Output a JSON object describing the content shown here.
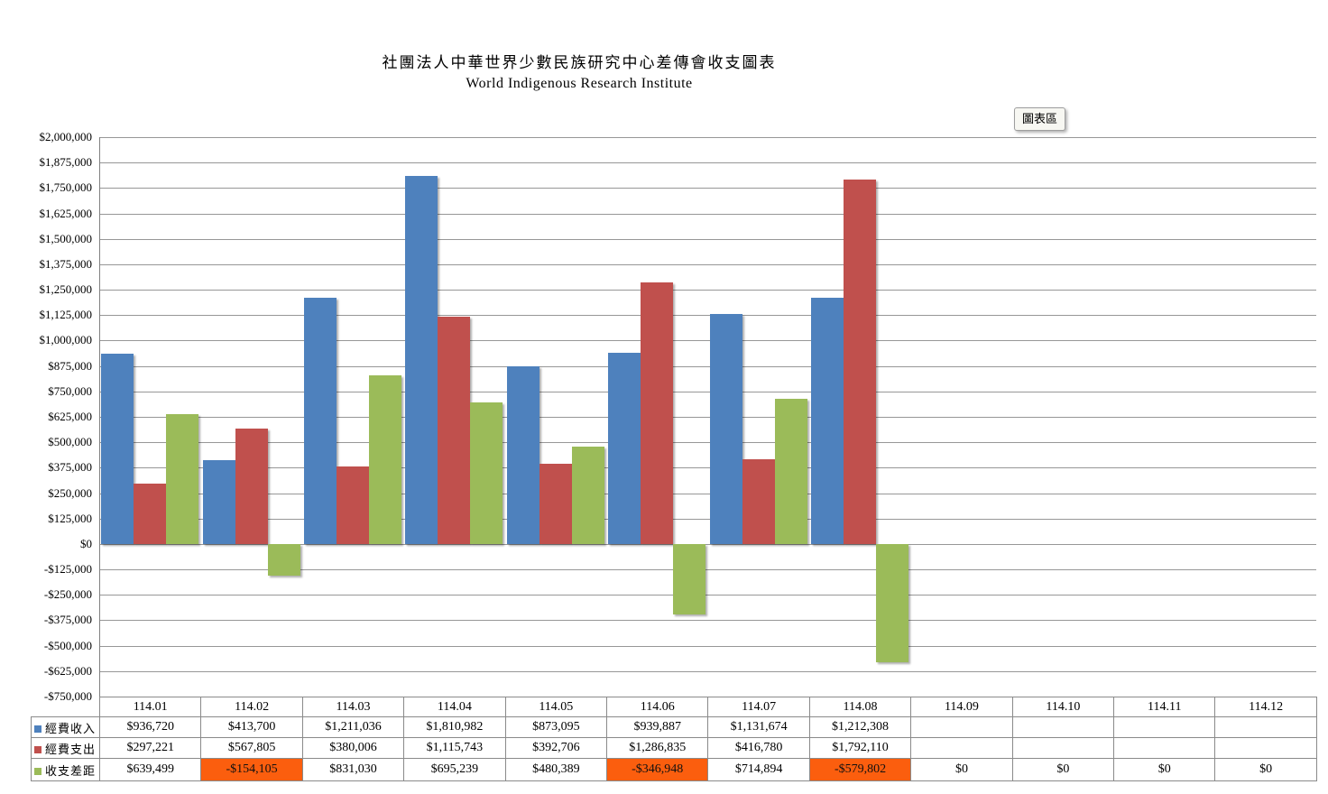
{
  "title": {
    "line1": "社團法人中華世界少數民族研究中心差傳會收支圖表",
    "line2": "World Indigenous Research Institute"
  },
  "tooltip": {
    "label": "圖表區"
  },
  "colors": {
    "income": "#4E81BD",
    "expense": "#C0504D",
    "balance": "#9BBB59",
    "highlight": "#FB5E0E",
    "gridline": "#979797",
    "table_border": "#8A8A8A"
  },
  "chart_data": {
    "type": "bar",
    "title": "社團法人中華世界少數民族研究中心差傳會收支圖表",
    "subtitle": "World Indigenous Research Institute",
    "categories": [
      "114.01",
      "114.02",
      "114.03",
      "114.04",
      "114.05",
      "114.06",
      "114.07",
      "114.08",
      "114.09",
      "114.10",
      "114.11",
      "114.12"
    ],
    "series": [
      {
        "key": "income",
        "name": "經費收入",
        "color": "#4E81BD",
        "values": [
          936720,
          413700,
          1211036,
          1810982,
          873095,
          939887,
          1131674,
          1212308,
          null,
          null,
          null,
          null
        ]
      },
      {
        "key": "expense",
        "name": "經費支出",
        "color": "#C0504D",
        "values": [
          297221,
          567805,
          380006,
          1115743,
          392706,
          1286835,
          416780,
          1792110,
          null,
          null,
          null,
          null
        ]
      },
      {
        "key": "balance",
        "name": "收支差距",
        "color": "#9BBB59",
        "values": [
          639499,
          -154105,
          831030,
          695239,
          480389,
          -346948,
          714894,
          -579802,
          0,
          0,
          0,
          0
        ]
      }
    ],
    "ylim": [
      -750000,
      2000000
    ],
    "y_step": 125000,
    "y_ticks": [
      "$2,000,000",
      "$1,875,000",
      "$1,750,000",
      "$1,625,000",
      "$1,500,000",
      "$1,375,000",
      "$1,250,000",
      "$1,125,000",
      "$1,000,000",
      "$875,000",
      "$750,000",
      "$625,000",
      "$500,000",
      "$375,000",
      "$250,000",
      "$125,000",
      "$0",
      "-$125,000",
      "-$250,000",
      "-$375,000",
      "-$500,000",
      "-$625,000",
      "-$750,000"
    ],
    "grid": true,
    "legend_position": "data-table-left"
  },
  "table": {
    "header": [
      "114.01",
      "114.02",
      "114.03",
      "114.04",
      "114.05",
      "114.06",
      "114.07",
      "114.08",
      "114.09",
      "114.10",
      "114.11",
      "114.12"
    ],
    "rows": [
      {
        "key": "income",
        "label": "經費收入",
        "swatch": "#4E81BD",
        "cells": [
          "$936,720",
          "$413,700",
          "$1,211,036",
          "$1,810,982",
          "$873,095",
          "$939,887",
          "$1,131,674",
          "$1,212,308",
          "",
          "",
          "",
          ""
        ],
        "highlight_cols": []
      },
      {
        "key": "expense",
        "label": "經費支出",
        "swatch": "#C0504D",
        "cells": [
          "$297,221",
          "$567,805",
          "$380,006",
          "$1,115,743",
          "$392,706",
          "$1,286,835",
          "$416,780",
          "$1,792,110",
          "",
          "",
          "",
          ""
        ],
        "highlight_cols": []
      },
      {
        "key": "balance",
        "label": "收支差距",
        "swatch": "#9BBB59",
        "cells": [
          "$639,499",
          "-$154,105",
          "$831,030",
          "$695,239",
          "$480,389",
          "-$346,948",
          "$714,894",
          "-$579,802",
          "$0",
          "$0",
          "$0",
          "$0"
        ],
        "highlight_cols": [
          1,
          5,
          7
        ]
      }
    ]
  }
}
